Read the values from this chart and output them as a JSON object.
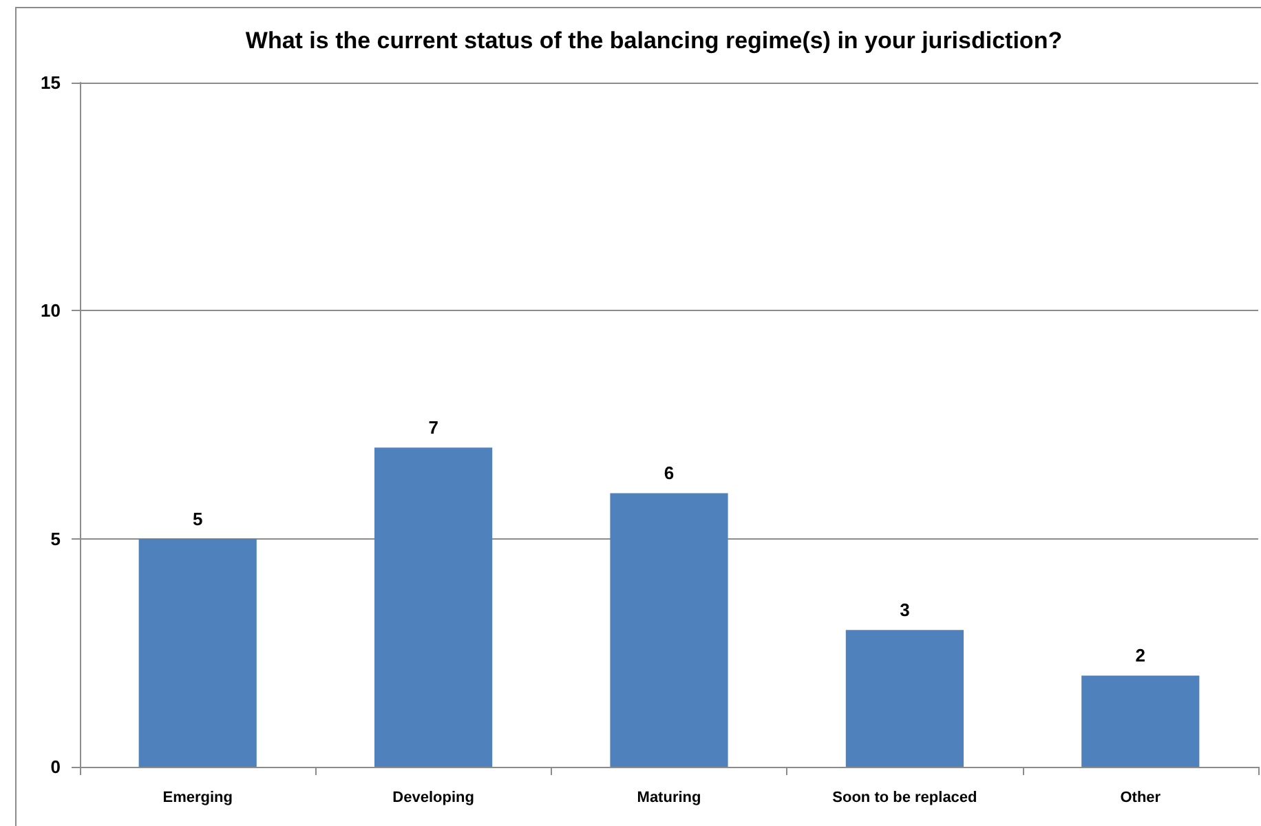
{
  "chart_data": {
    "type": "bar",
    "title": "What is the current status of the balancing regime(s) in your jurisdiction?",
    "categories": [
      "Emerging",
      "Developing",
      "Maturing",
      "Soon to be replaced",
      "Other"
    ],
    "values": [
      5,
      7,
      6,
      3,
      2
    ],
    "color": "#4f81bd",
    "ylim": [
      0,
      15
    ],
    "yticks": [
      0,
      5,
      10,
      15
    ],
    "grid": "y",
    "data_labels": true
  }
}
